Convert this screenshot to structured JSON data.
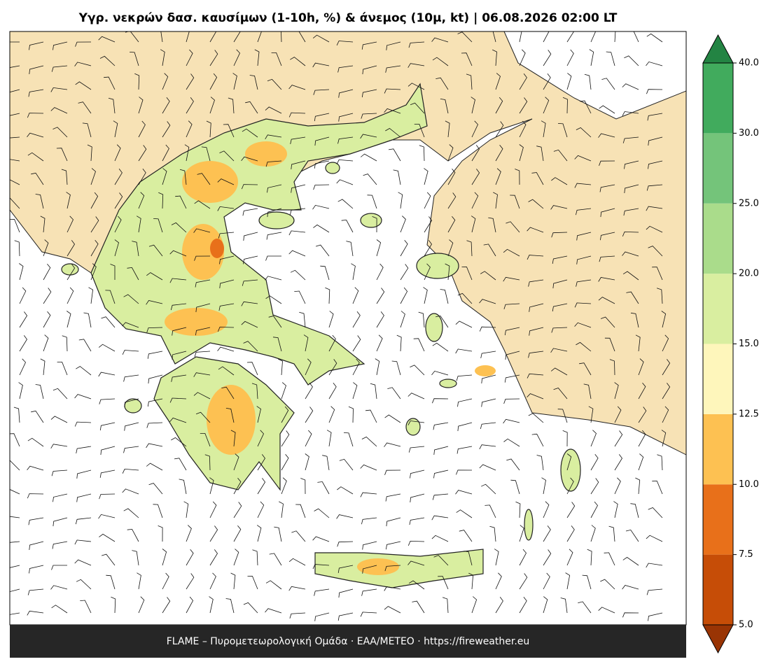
{
  "map": {
    "title": "Υγρ. νεκρών δασ. καυσίμων (1-10h, %) & άνεμος (10μ, kt)  |  06.08.2026 02:00 LT",
    "footer": "FLAME – Πυρομετεωρολογική Ομάδα · ΕΑΑ/METEO · https://fireweather.eu",
    "colorbar": {
      "ticks": [
        {
          "value": 5,
          "label": "5.0"
        },
        {
          "value": 7.5,
          "label": "7.5"
        },
        {
          "value": 10,
          "label": "10.0"
        },
        {
          "value": 12.5,
          "label": "12.5"
        },
        {
          "value": 15,
          "label": "15.0"
        },
        {
          "value": 20,
          "label": "20.0"
        },
        {
          "value": 25,
          "label": "25.0"
        },
        {
          "value": 30,
          "label": "30.0"
        },
        {
          "value": 40,
          "label": "40.0"
        }
      ],
      "colors": [
        "#c64d07",
        "#e8701a",
        "#fdc152",
        "#fef6bb",
        "#d9eea0",
        "#aadc8b",
        "#74c47a",
        "#41ab5d"
      ],
      "under_color": "#993404",
      "over_color": "#238443"
    }
  }
}
